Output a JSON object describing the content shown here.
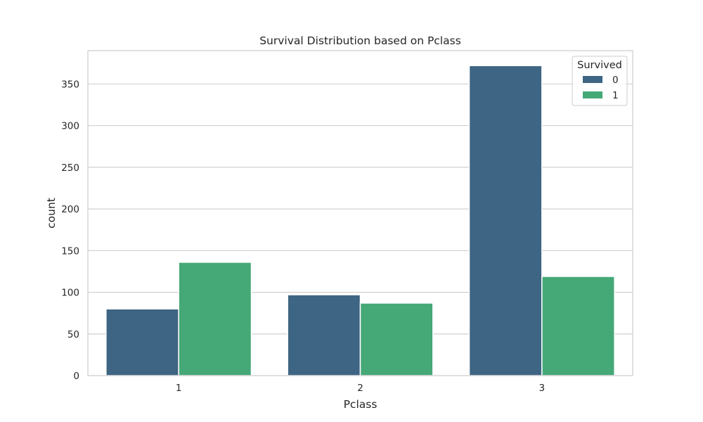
{
  "chart_data": {
    "type": "bar",
    "title": "Survival Distribution based on Pclass",
    "xlabel": "Pclass",
    "ylabel": "count",
    "categories": [
      "1",
      "2",
      "3"
    ],
    "series": [
      {
        "name": "0",
        "values": [
          80,
          97,
          372
        ],
        "color": "#3e6583"
      },
      {
        "name": "1",
        "values": [
          136,
          87,
          119
        ],
        "color": "#45a877"
      }
    ],
    "ylim": [
      0,
      390
    ],
    "yticks": [
      0,
      50,
      100,
      150,
      200,
      250,
      300,
      350
    ],
    "grid": true,
    "legend": {
      "title": "Survived",
      "placement": "top-right"
    }
  }
}
